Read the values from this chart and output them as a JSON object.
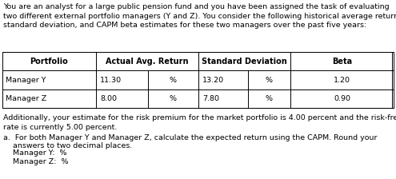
{
  "intro_text": "You are an analyst for a large public pension fund and you have been assigned the task of evaluating\ntwo different external portfolio managers (Y and Z). You consider the following historical average return,\nstandard deviation, and CAPM beta estimates for these two managers over the past five years:",
  "additional_text": "Additionally, your estimate for the risk premium for the market portfolio is 4.00 percent and the risk-free\nrate is currently 5.00 percent.",
  "question_line1": "a.  For both Manager Y and Manager Z, calculate the expected return using the CAPM. Round your",
  "question_line2": "    answers to two decimal places.",
  "question_line3": "    Manager Y:  %",
  "question_line4": "    Manager Z:  %",
  "table_headers": [
    "Portfolio",
    "Actual Avg. Return",
    "",
    "Standard Deviation",
    "",
    "Beta"
  ],
  "row_y": [
    "Manager Y",
    "11.30",
    "%",
    "13.20",
    "%",
    "1.20"
  ],
  "row_z": [
    "Manager Z",
    "8.00",
    "%",
    "7.80",
    "%",
    "0.90"
  ],
  "bg_color": "#ffffff",
  "border_color": "#000000",
  "font_size": 6.8,
  "header_font_size": 7.0
}
